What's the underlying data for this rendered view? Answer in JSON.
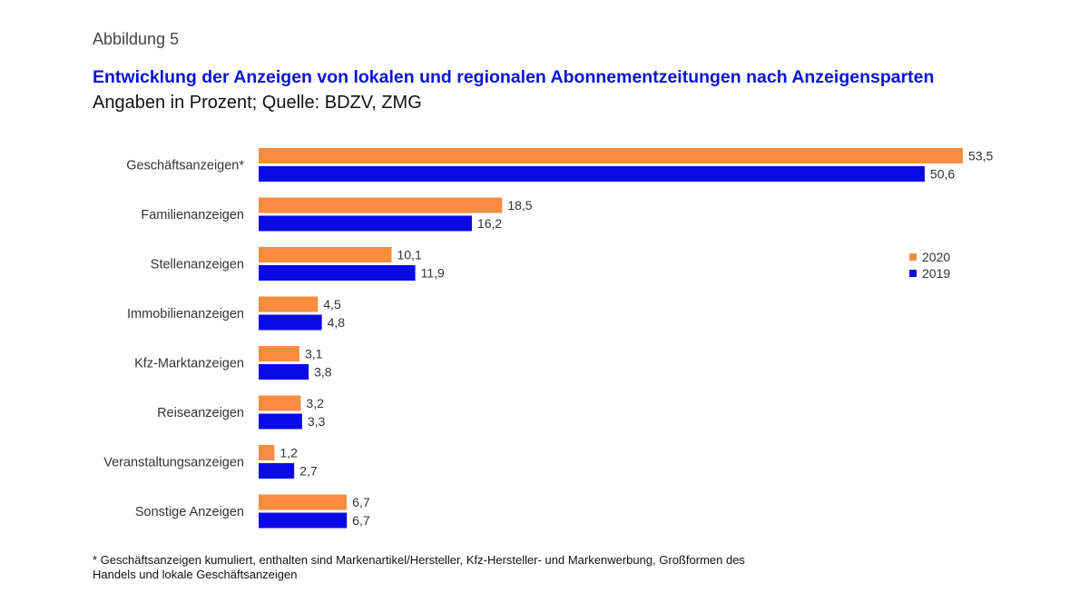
{
  "figure_label": "Abbildung 5",
  "chart_data": {
    "type": "bar",
    "orientation": "horizontal",
    "title": "Entwicklung der Anzeigen von lokalen und regionalen Abonnementzeitungen nach Anzeigensparten",
    "subtitle": "Angaben in Prozent; Quelle: BDZV, ZMG",
    "categories": [
      "Geschäftsanzeigen*",
      "Familienanzeigen",
      "Stellenanzeigen",
      "Immobilienanzeigen",
      "Kfz-Marktanzeigen",
      "Reiseanzeigen",
      "Veranstaltungsanzeigen",
      "Sonstige Anzeigen"
    ],
    "series": [
      {
        "name": "2020",
        "color": "#f98c3e",
        "values": [
          53.5,
          18.5,
          10.1,
          4.5,
          3.1,
          3.2,
          1.2,
          6.7
        ],
        "labels": [
          "53,5",
          "18,5",
          "10,1",
          "4,5",
          "3,1",
          "3,2",
          "1,2",
          "6,7"
        ]
      },
      {
        "name": "2019",
        "color": "#0a0ae6",
        "values": [
          50.6,
          16.2,
          11.9,
          4.8,
          3.8,
          3.3,
          2.7,
          6.7
        ],
        "labels": [
          "50,6",
          "16,2",
          "11,9",
          "4,8",
          "3,8",
          "3,3",
          "2,7",
          "6,7"
        ]
      }
    ],
    "xlim": [
      0,
      53.5
    ],
    "grid": false,
    "legend_position": "right"
  },
  "footnote": "* Geschäftsanzeigen kumuliert, enthalten sind Markenartikel/Hersteller, Kfz-Hersteller- und Markenwerbung, Großformen des Handels und lokale Geschäftsanzeigen"
}
